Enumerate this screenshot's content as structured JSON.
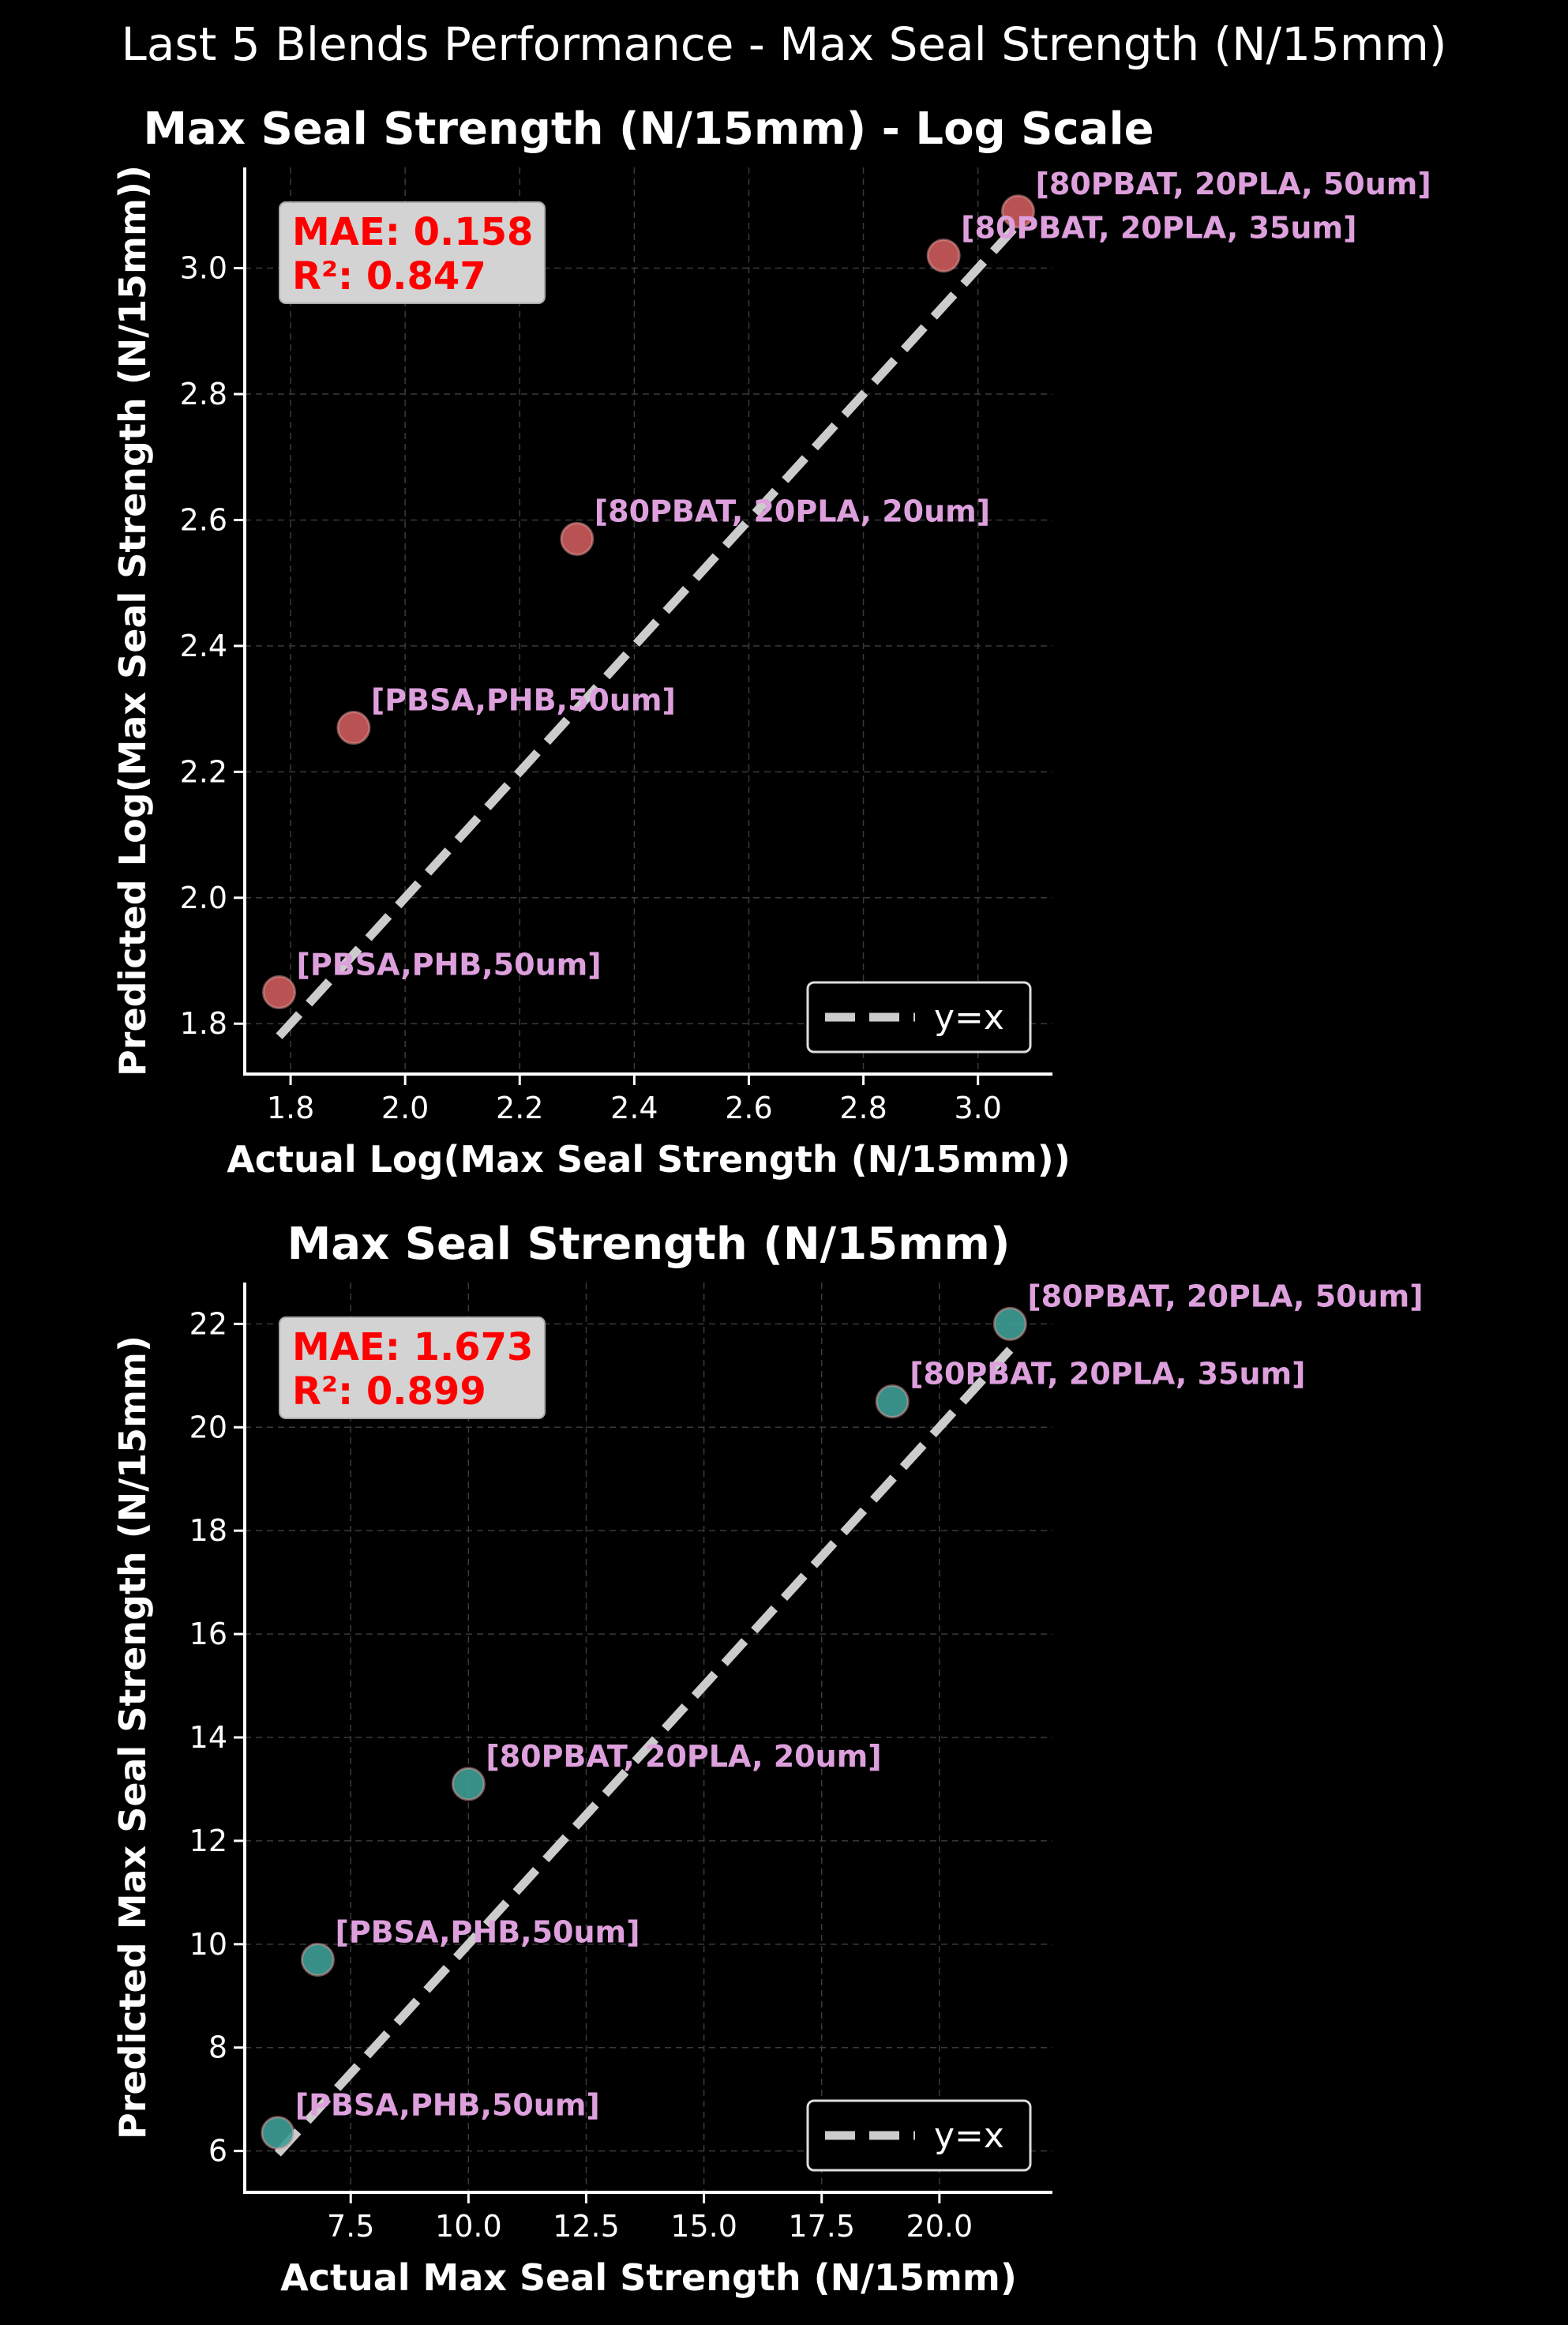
{
  "figure_title": "Last 5 Blends Performance - Max Seal Strength (N/15mm)",
  "colors": {
    "background": "#000000",
    "axis": "#ffffff",
    "grid": "#3a3a3a",
    "diagonal": "#cccccc",
    "annotation": "#dda0dd",
    "metrics_text": "#ff0000",
    "metrics_box": "#d3d3d3"
  },
  "chart_data": [
    {
      "type": "scatter",
      "title": "Max Seal Strength (N/15mm) - Log Scale",
      "xlabel": "Actual Log(Max Seal Strength (N/15mm))",
      "ylabel": "Predicted Log(Max Seal Strength (N/15mm))",
      "xlim": [
        1.72,
        3.13
      ],
      "ylim": [
        1.72,
        3.16
      ],
      "xticks": [
        1.8,
        2.0,
        2.2,
        2.4,
        2.6,
        2.8,
        3.0
      ],
      "xtick_labels": [
        "1.8",
        "2.0",
        "2.2",
        "2.4",
        "2.6",
        "2.8",
        "3.0"
      ],
      "yticks": [
        1.8,
        2.0,
        2.2,
        2.4,
        2.6,
        2.8,
        3.0
      ],
      "ytick_labels": [
        "1.8",
        "2.0",
        "2.2",
        "2.4",
        "2.6",
        "2.8",
        "3.0"
      ],
      "grid": true,
      "point_color": "#cd5c5c",
      "points": [
        {
          "x": 1.78,
          "y": 1.85,
          "label": "[PBSA,PHB,50um]"
        },
        {
          "x": 1.91,
          "y": 2.27,
          "label": "[PBSA,PHB,50um]"
        },
        {
          "x": 2.3,
          "y": 2.57,
          "label": "[80PBAT, 20PLA, 20um]"
        },
        {
          "x": 2.94,
          "y": 3.02,
          "label": "[80PBAT, 20PLA, 35um]"
        },
        {
          "x": 3.07,
          "y": 3.09,
          "label": "[80PBAT, 20PLA, 50um]"
        }
      ],
      "diagonal_range": [
        1.78,
        3.07
      ],
      "metrics": {
        "mae": "MAE: 0.158",
        "r2": "R²: 0.847"
      },
      "legend": {
        "label": "y=x",
        "placement": "lower-right"
      }
    },
    {
      "type": "scatter",
      "title": "Max Seal Strength (N/15mm)",
      "xlabel": "Actual Max Seal Strength (N/15mm)",
      "ylabel": "Predicted Max Seal Strength (N/15mm)",
      "xlim": [
        5.25,
        22.4
      ],
      "ylim": [
        5.2,
        22.8
      ],
      "xticks": [
        7.5,
        10.0,
        12.5,
        15.0,
        17.5,
        20.0
      ],
      "xtick_labels": [
        "7.5",
        "10.0",
        "12.5",
        "15.0",
        "17.5",
        "20.0"
      ],
      "yticks": [
        6,
        8,
        10,
        12,
        14,
        16,
        18,
        20,
        22
      ],
      "ytick_labels": [
        "6",
        "8",
        "10",
        "12",
        "14",
        "16",
        "18",
        "20",
        "22"
      ],
      "grid": true,
      "point_color": "#3d9e96",
      "points": [
        {
          "x": 5.95,
          "y": 6.35,
          "label": "[PBSA,PHB,50um]"
        },
        {
          "x": 6.8,
          "y": 9.7,
          "label": "[PBSA,PHB,50um]"
        },
        {
          "x": 10.0,
          "y": 13.1,
          "label": "[80PBAT, 20PLA, 20um]"
        },
        {
          "x": 19.0,
          "y": 20.5,
          "label": "[80PBAT, 20PLA, 35um]"
        },
        {
          "x": 21.5,
          "y": 22.0,
          "label": "[80PBAT, 20PLA, 50um]"
        }
      ],
      "diagonal_range": [
        5.95,
        21.5
      ],
      "metrics": {
        "mae": "MAE: 1.673",
        "r2": "R²: 0.899"
      },
      "legend": {
        "label": "y=x",
        "placement": "lower-right"
      }
    }
  ]
}
